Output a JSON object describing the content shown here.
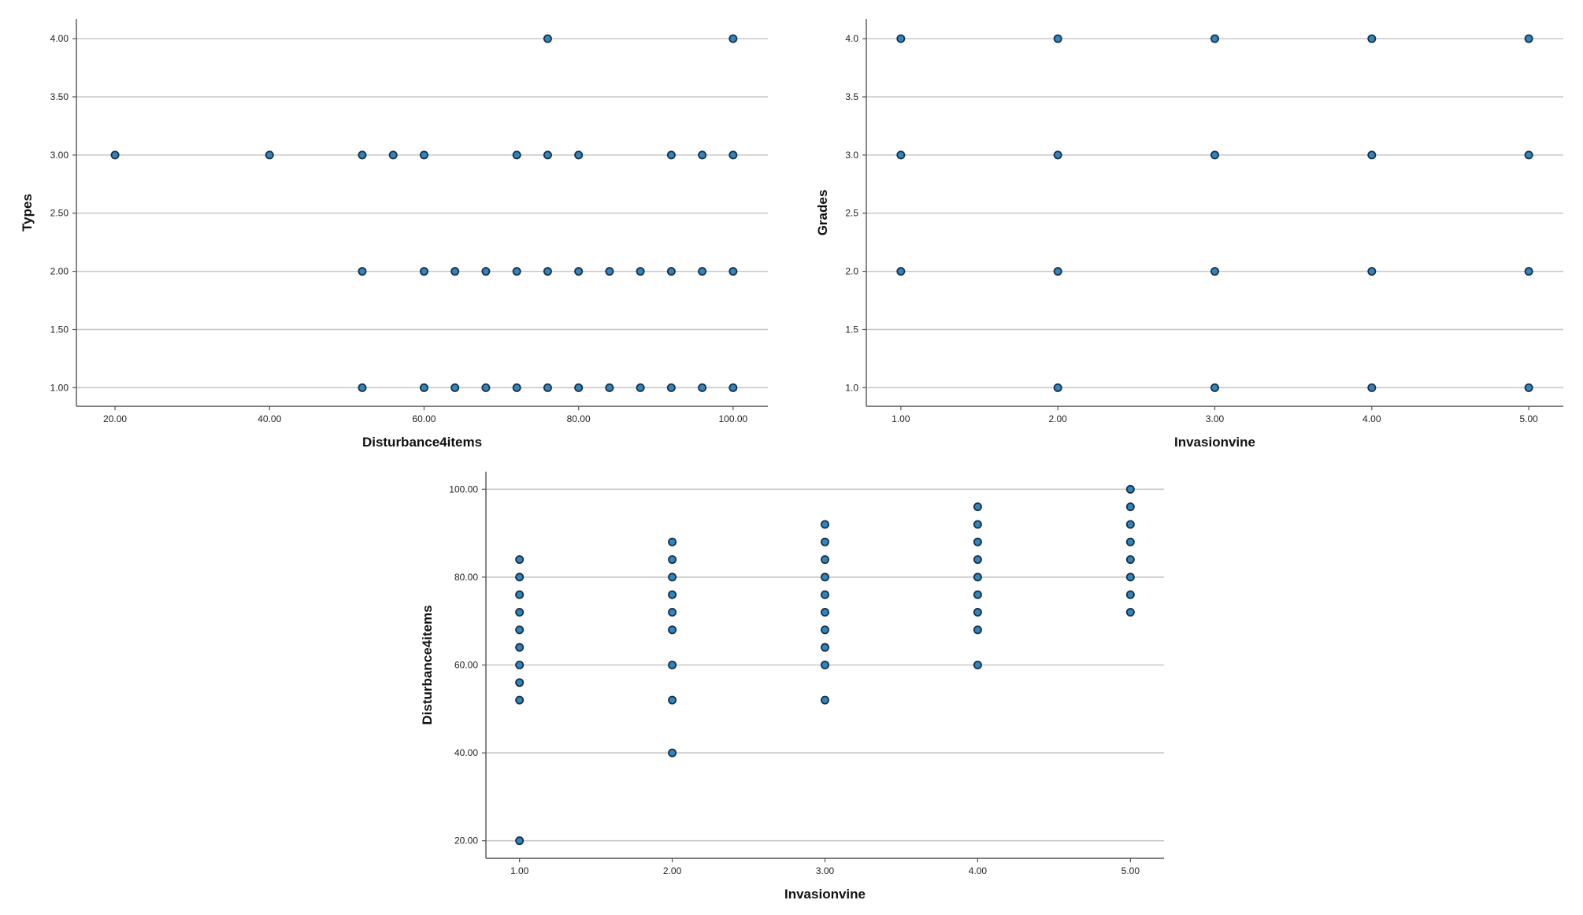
{
  "colors": {
    "point_fill": "#2e86c1",
    "point_stroke": "#1b2f45",
    "grid": "#c8c8c8",
    "axis": "#555555"
  },
  "chart_data": [
    {
      "type": "scatter",
      "title": "",
      "xlabel": "Disturbance4items",
      "ylabel": "Types",
      "xlim": [
        15,
        104.5
      ],
      "ylim": [
        0.84,
        4.17
      ],
      "x_ticks": [
        20,
        40,
        60,
        80,
        100
      ],
      "x_tick_labels": [
        "20.00",
        "40.00",
        "60.00",
        "80.00",
        "100.00"
      ],
      "y_ticks": [
        1,
        1.5,
        2,
        2.5,
        3,
        3.5,
        4
      ],
      "y_tick_labels": [
        "1.00",
        "1.50",
        "2.00",
        "2.50",
        "3.00",
        "3.50",
        "4.00"
      ],
      "grid": "horizontal",
      "points": [
        {
          "x": 76,
          "y": 4
        },
        {
          "x": 100,
          "y": 4
        },
        {
          "x": 20,
          "y": 3
        },
        {
          "x": 40,
          "y": 3
        },
        {
          "x": 52,
          "y": 3
        },
        {
          "x": 56,
          "y": 3
        },
        {
          "x": 60,
          "y": 3
        },
        {
          "x": 72,
          "y": 3
        },
        {
          "x": 76,
          "y": 3
        },
        {
          "x": 80,
          "y": 3
        },
        {
          "x": 92,
          "y": 3
        },
        {
          "x": 96,
          "y": 3
        },
        {
          "x": 100,
          "y": 3
        },
        {
          "x": 52,
          "y": 2
        },
        {
          "x": 60,
          "y": 2
        },
        {
          "x": 64,
          "y": 2
        },
        {
          "x": 68,
          "y": 2
        },
        {
          "x": 72,
          "y": 2
        },
        {
          "x": 76,
          "y": 2
        },
        {
          "x": 80,
          "y": 2
        },
        {
          "x": 84,
          "y": 2
        },
        {
          "x": 88,
          "y": 2
        },
        {
          "x": 92,
          "y": 2
        },
        {
          "x": 96,
          "y": 2
        },
        {
          "x": 100,
          "y": 2
        },
        {
          "x": 52,
          "y": 1
        },
        {
          "x": 60,
          "y": 1
        },
        {
          "x": 64,
          "y": 1
        },
        {
          "x": 68,
          "y": 1
        },
        {
          "x": 72,
          "y": 1
        },
        {
          "x": 76,
          "y": 1
        },
        {
          "x": 80,
          "y": 1
        },
        {
          "x": 84,
          "y": 1
        },
        {
          "x": 88,
          "y": 1
        },
        {
          "x": 92,
          "y": 1
        },
        {
          "x": 96,
          "y": 1
        },
        {
          "x": 100,
          "y": 1
        }
      ]
    },
    {
      "type": "scatter",
      "title": "",
      "xlabel": "Invasionvine",
      "ylabel": "Grades",
      "xlim": [
        0.78,
        5.22
      ],
      "ylim": [
        0.84,
        4.17
      ],
      "x_ticks": [
        1,
        2,
        3,
        4,
        5
      ],
      "x_tick_labels": [
        "1.00",
        "2.00",
        "3.00",
        "4.00",
        "5.00"
      ],
      "y_ticks": [
        1,
        1.5,
        2,
        2.5,
        3,
        3.5,
        4
      ],
      "y_tick_labels": [
        "1.0",
        "1.5",
        "2.0",
        "2.5",
        "3.0",
        "3.5",
        "4.0"
      ],
      "grid": "horizontal",
      "points": [
        {
          "x": 1,
          "y": 4
        },
        {
          "x": 2,
          "y": 4
        },
        {
          "x": 3,
          "y": 4
        },
        {
          "x": 4,
          "y": 4
        },
        {
          "x": 5,
          "y": 4
        },
        {
          "x": 1,
          "y": 3
        },
        {
          "x": 2,
          "y": 3
        },
        {
          "x": 3,
          "y": 3
        },
        {
          "x": 4,
          "y": 3
        },
        {
          "x": 5,
          "y": 3
        },
        {
          "x": 1,
          "y": 2
        },
        {
          "x": 2,
          "y": 2
        },
        {
          "x": 3,
          "y": 2
        },
        {
          "x": 4,
          "y": 2
        },
        {
          "x": 5,
          "y": 2
        },
        {
          "x": 2,
          "y": 1
        },
        {
          "x": 3,
          "y": 1
        },
        {
          "x": 4,
          "y": 1
        },
        {
          "x": 5,
          "y": 1
        }
      ]
    },
    {
      "type": "scatter",
      "title": "",
      "xlabel": "Invasionvine",
      "ylabel": "Disturbance4items",
      "xlim": [
        0.78,
        5.22
      ],
      "ylim": [
        16,
        104
      ],
      "x_ticks": [
        1,
        2,
        3,
        4,
        5
      ],
      "x_tick_labels": [
        "1.00",
        "2.00",
        "3.00",
        "4.00",
        "5.00"
      ],
      "y_ticks": [
        20,
        40,
        60,
        80,
        100
      ],
      "y_tick_labels": [
        "20.00",
        "40.00",
        "60.00",
        "80.00",
        "100.00"
      ],
      "grid": "horizontal",
      "points": [
        {
          "x": 1,
          "y": 84
        },
        {
          "x": 1,
          "y": 80
        },
        {
          "x": 1,
          "y": 76
        },
        {
          "x": 1,
          "y": 72
        },
        {
          "x": 1,
          "y": 68
        },
        {
          "x": 1,
          "y": 64
        },
        {
          "x": 1,
          "y": 60
        },
        {
          "x": 1,
          "y": 56
        },
        {
          "x": 1,
          "y": 52
        },
        {
          "x": 1,
          "y": 20
        },
        {
          "x": 2,
          "y": 88
        },
        {
          "x": 2,
          "y": 84
        },
        {
          "x": 2,
          "y": 80
        },
        {
          "x": 2,
          "y": 76
        },
        {
          "x": 2,
          "y": 72
        },
        {
          "x": 2,
          "y": 68
        },
        {
          "x": 2,
          "y": 60
        },
        {
          "x": 2,
          "y": 52
        },
        {
          "x": 2,
          "y": 40
        },
        {
          "x": 3,
          "y": 92
        },
        {
          "x": 3,
          "y": 88
        },
        {
          "x": 3,
          "y": 84
        },
        {
          "x": 3,
          "y": 80
        },
        {
          "x": 3,
          "y": 76
        },
        {
          "x": 3,
          "y": 72
        },
        {
          "x": 3,
          "y": 68
        },
        {
          "x": 3,
          "y": 64
        },
        {
          "x": 3,
          "y": 60
        },
        {
          "x": 3,
          "y": 52
        },
        {
          "x": 4,
          "y": 96
        },
        {
          "x": 4,
          "y": 92
        },
        {
          "x": 4,
          "y": 88
        },
        {
          "x": 4,
          "y": 84
        },
        {
          "x": 4,
          "y": 80
        },
        {
          "x": 4,
          "y": 76
        },
        {
          "x": 4,
          "y": 72
        },
        {
          "x": 4,
          "y": 68
        },
        {
          "x": 4,
          "y": 60
        },
        {
          "x": 5,
          "y": 100
        },
        {
          "x": 5,
          "y": 96
        },
        {
          "x": 5,
          "y": 92
        },
        {
          "x": 5,
          "y": 88
        },
        {
          "x": 5,
          "y": 84
        },
        {
          "x": 5,
          "y": 80
        },
        {
          "x": 5,
          "y": 76
        },
        {
          "x": 5,
          "y": 72
        }
      ]
    }
  ]
}
